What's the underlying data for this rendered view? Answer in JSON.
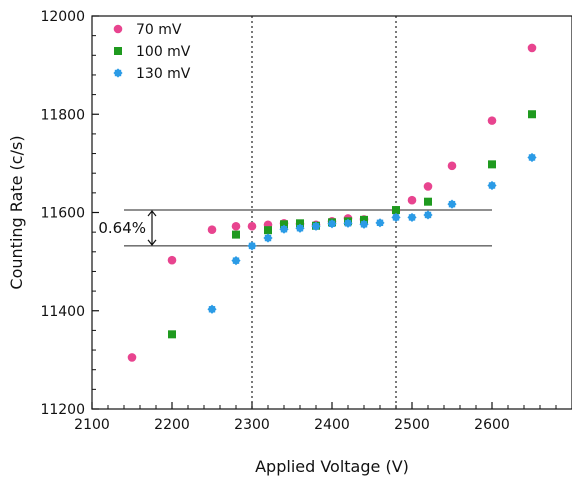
{
  "chart_data": {
    "type": "scatter",
    "xlabel": "Applied Voltage (V)",
    "ylabel": "Counting Rate (c/s)",
    "xlim": [
      2100,
      2700
    ],
    "ylim": [
      11200,
      12000
    ],
    "xticks": [
      2100,
      2200,
      2300,
      2400,
      2500,
      2600
    ],
    "yticks": [
      11200,
      11400,
      11600,
      11800,
      12000
    ],
    "grid": false,
    "legend_position": "top-left",
    "series": [
      {
        "name": "70 mV",
        "color": "#e8448f",
        "marker": "circle",
        "points": [
          [
            2150,
            11305
          ],
          [
            2200,
            11503
          ],
          [
            2250,
            11565
          ],
          [
            2280,
            11572
          ],
          [
            2300,
            11572
          ],
          [
            2320,
            11575
          ],
          [
            2340,
            11578
          ],
          [
            2360,
            11577
          ],
          [
            2380,
            11575
          ],
          [
            2400,
            11582
          ],
          [
            2420,
            11588
          ],
          [
            2440,
            11586
          ],
          [
            2480,
            11604
          ],
          [
            2500,
            11625
          ],
          [
            2520,
            11653
          ],
          [
            2550,
            11695
          ],
          [
            2600,
            11787
          ],
          [
            2650,
            11935
          ]
        ]
      },
      {
        "name": "100 mV",
        "color": "#1f9a1f",
        "marker": "square",
        "points": [
          [
            2200,
            11352
          ],
          [
            2280,
            11555
          ],
          [
            2320,
            11564
          ],
          [
            2340,
            11576
          ],
          [
            2360,
            11578
          ],
          [
            2380,
            11573
          ],
          [
            2400,
            11580
          ],
          [
            2420,
            11582
          ],
          [
            2440,
            11585
          ],
          [
            2480,
            11605
          ],
          [
            2520,
            11622
          ],
          [
            2600,
            11698
          ],
          [
            2650,
            11800
          ]
        ]
      },
      {
        "name": "130 mV",
        "color": "#2b9be6",
        "marker": "diamond",
        "points": [
          [
            2250,
            11403
          ],
          [
            2280,
            11502
          ],
          [
            2300,
            11532
          ],
          [
            2320,
            11548
          ],
          [
            2340,
            11566
          ],
          [
            2360,
            11568
          ],
          [
            2380,
            11572
          ],
          [
            2400,
            11577
          ],
          [
            2420,
            11578
          ],
          [
            2440,
            11576
          ],
          [
            2460,
            11579
          ],
          [
            2480,
            11590
          ],
          [
            2500,
            11590
          ],
          [
            2520,
            11595
          ],
          [
            2550,
            11617
          ],
          [
            2600,
            11655
          ],
          [
            2650,
            11712
          ]
        ]
      }
    ],
    "vertical_lines": [
      2300,
      2480
    ],
    "horizontal_lines": [
      {
        "y": 11605,
        "x_range": [
          2180,
          2600
        ]
      },
      {
        "y": 11532,
        "x_range": [
          2180,
          2600
        ]
      }
    ],
    "annotations": [
      {
        "text": "0.64%",
        "x": 2172,
        "y_range": [
          11532,
          11605
        ]
      }
    ]
  }
}
